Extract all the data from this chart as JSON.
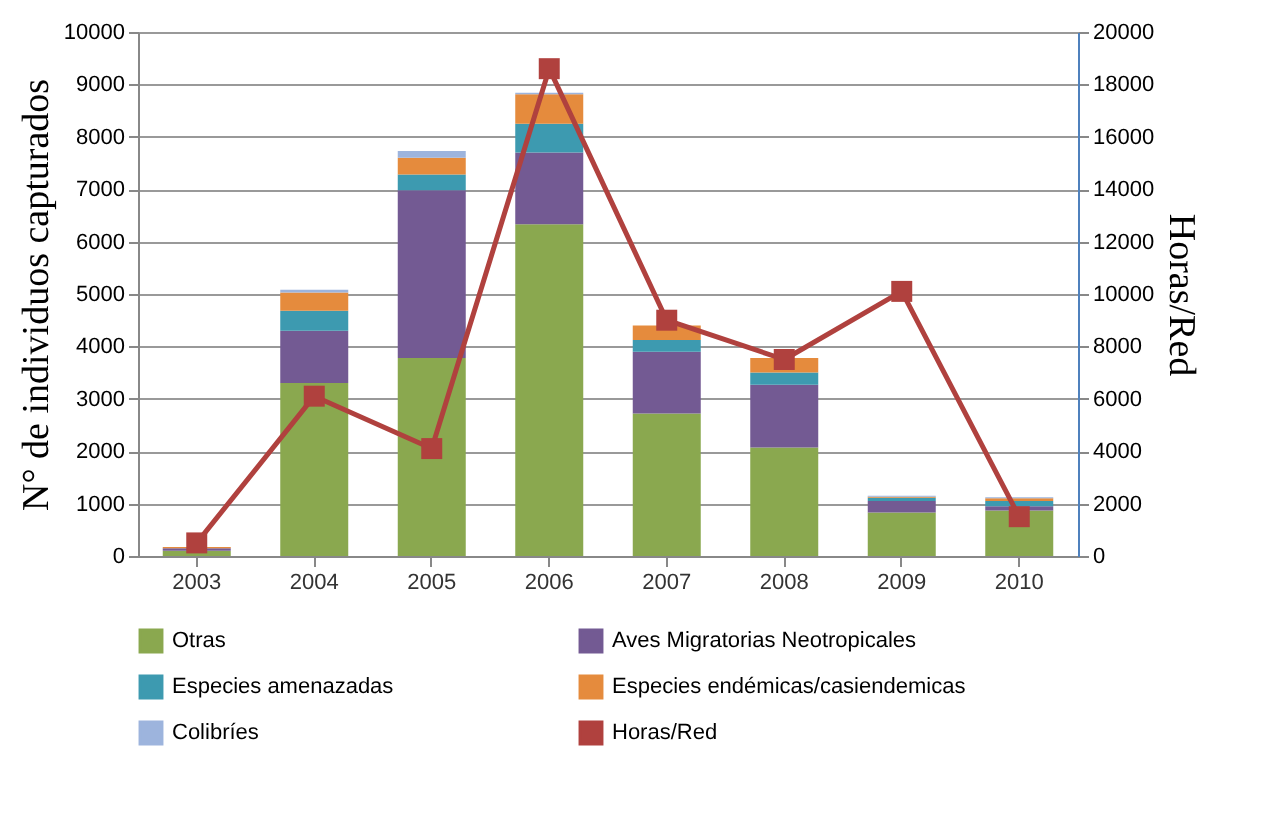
{
  "chart_data": {
    "type": "bar",
    "stacked": true,
    "categories": [
      "2003",
      "2004",
      "2005",
      "2006",
      "2007",
      "2008",
      "2009",
      "2010"
    ],
    "ylabel": "N° de individuos capturados",
    "y2label": "Horas/Red",
    "ylim": [
      0,
      10000
    ],
    "yticks": [
      0,
      1000,
      2000,
      3000,
      4000,
      5000,
      6000,
      7000,
      8000,
      9000,
      10000
    ],
    "y2lim": [
      0,
      20000
    ],
    "y2ticks": [
      0,
      2000,
      4000,
      6000,
      8000,
      10000,
      12000,
      14000,
      16000,
      18000,
      20000
    ],
    "grid": "y",
    "legend": "bottom",
    "series": [
      {
        "name": "Otras",
        "color": "#8aa84f",
        "values": [
          100,
          3300,
          3780,
          6330,
          2720,
          2070,
          830,
          870
        ]
      },
      {
        "name": "Aves Migratorias Neotropicales",
        "color": "#735a93",
        "values": [
          50,
          1000,
          3200,
          1370,
          1180,
          1200,
          220,
          80
        ]
      },
      {
        "name": "Especies amenazadas",
        "color": "#3d9ab0",
        "values": [
          null,
          380,
          300,
          550,
          220,
          230,
          60,
          100
        ]
      },
      {
        "name": "Especies endémicas/casiendemicas",
        "color": "#e58b3d",
        "values": [
          20,
          350,
          320,
          560,
          280,
          280,
          20,
          50
        ]
      },
      {
        "name": "Colibríes",
        "color": "#9db4dd",
        "values": [
          null,
          50,
          130,
          30,
          null,
          null,
          20,
          20
        ]
      },
      {
        "name": "Horas/Red",
        "color": "#b0413e",
        "type": "line",
        "axis": "y2",
        "marker": "square",
        "line_style": "solid",
        "values": [
          500,
          6100,
          4100,
          18600,
          9000,
          7500,
          10100,
          1500
        ]
      }
    ]
  }
}
